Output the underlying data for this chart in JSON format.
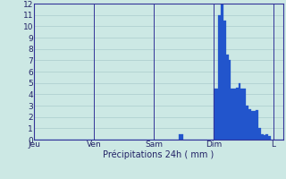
{
  "title": "",
  "xlabel": "Précipitations 24h ( mm )",
  "ylabel": "",
  "ylim": [
    0,
    12
  ],
  "yticks": [
    0,
    1,
    2,
    3,
    4,
    5,
    6,
    7,
    8,
    9,
    10,
    11,
    12
  ],
  "background_color": "#cce8e4",
  "plot_bg_color": "#cce8e4",
  "bar_color": "#2255cc",
  "bar_edge_color": "#2255cc",
  "grid_color": "#aacccc",
  "axis_color": "#333399",
  "text_color": "#222266",
  "day_labels": [
    "Jeu",
    "Ven",
    "Sam",
    "Dim",
    "L"
  ],
  "day_positions": [
    0,
    24,
    48,
    72,
    96
  ],
  "total_bars": 100,
  "bar_values": [
    0,
    0,
    0,
    0,
    0,
    0,
    0,
    0,
    0,
    0,
    0,
    0,
    0,
    0,
    0,
    0,
    0,
    0,
    0,
    0,
    0,
    0,
    0,
    0,
    0,
    0,
    0,
    0,
    0,
    0,
    0,
    0,
    0,
    0,
    0,
    0,
    0,
    0,
    0,
    0,
    0,
    0,
    0,
    0,
    0,
    0,
    0,
    0,
    0,
    0,
    0,
    0,
    0,
    0,
    0,
    0,
    0,
    0,
    0.5,
    0.5,
    0,
    0,
    0,
    0,
    0,
    0,
    0,
    0,
    0,
    0,
    0,
    0,
    4.5,
    4.5,
    11.0,
    12.0,
    10.5,
    7.5,
    7.0,
    4.5,
    4.5,
    4.6,
    5.0,
    4.5,
    4.5,
    3.0,
    2.7,
    2.5,
    2.5,
    2.6,
    1.0,
    0.5,
    0.4,
    0.5,
    0.3,
    0,
    0,
    0,
    0,
    0,
    0,
    0
  ]
}
